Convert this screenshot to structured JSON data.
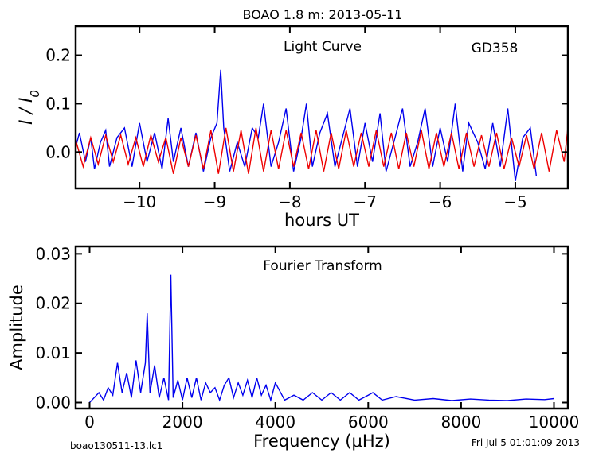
{
  "figure": {
    "title": "BOAO 1.8 m:  2013-05-11",
    "footer_left": "boao130511-13.lc1",
    "footer_right": "Fri Jul  5 01:01:09 2013"
  },
  "chart_data": [
    {
      "type": "line",
      "title": "Light Curve",
      "annotation": "GD358",
      "xlabel": "hours UT",
      "ylabel": "I / I0",
      "xlim": [
        -10.85,
        -4.3
      ],
      "ylim": [
        -0.075,
        0.26
      ],
      "xticks": [
        -10,
        -9,
        -8,
        -7,
        -6,
        -5
      ],
      "xtick_labels": [
        "−10",
        "−9",
        "−8",
        "−7",
        "−6",
        "−5"
      ],
      "yticks": [
        0.0,
        0.1,
        0.2
      ],
      "ytick_labels": [
        "0.0",
        "0.1",
        "0.2"
      ],
      "grid": false,
      "series": [
        {
          "color": "#0000ee",
          "x": [
            -10.85,
            -10.8,
            -10.72,
            -10.65,
            -10.6,
            -10.52,
            -10.45,
            -10.4,
            -10.3,
            -10.2,
            -10.1,
            -10.0,
            -9.9,
            -9.8,
            -9.7,
            -9.62,
            -9.55,
            -9.45,
            -9.35,
            -9.25,
            -9.15,
            -9.05,
            -8.97,
            -8.92,
            -8.88,
            -8.8,
            -8.7,
            -8.6,
            -8.5,
            -8.42,
            -8.35,
            -8.25,
            -8.15,
            -8.05,
            -7.95,
            -7.85,
            -7.78,
            -7.7,
            -7.6,
            -7.5,
            -7.4,
            -7.3,
            -7.2,
            -7.1,
            -7.0,
            -6.9,
            -6.8,
            -6.72,
            -6.6,
            -6.5,
            -6.4,
            -6.3,
            -6.2,
            -6.1,
            -6.0,
            -5.9,
            -5.8,
            -5.7,
            -5.62,
            -5.5,
            -5.4,
            -5.3,
            -5.2,
            -5.1,
            -5.0,
            -4.9,
            -4.8,
            -4.72
          ],
          "y": [
            0.01,
            0.04,
            -0.02,
            0.03,
            -0.035,
            0.02,
            0.045,
            -0.03,
            0.03,
            0.05,
            -0.03,
            0.06,
            -0.02,
            0.04,
            -0.035,
            0.07,
            -0.02,
            0.05,
            -0.03,
            0.04,
            -0.04,
            0.03,
            0.06,
            0.17,
            0.05,
            -0.04,
            0.02,
            -0.03,
            0.05,
            0.03,
            0.1,
            -0.03,
            0.02,
            0.09,
            -0.04,
            0.03,
            0.1,
            -0.03,
            0.04,
            0.08,
            -0.03,
            0.03,
            0.09,
            -0.03,
            0.06,
            -0.02,
            0.08,
            -0.04,
            0.03,
            0.09,
            -0.03,
            0.02,
            0.09,
            -0.03,
            0.05,
            -0.02,
            0.1,
            -0.04,
            0.06,
            0.02,
            -0.035,
            0.06,
            -0.03,
            0.09,
            -0.06,
            0.03,
            0.05,
            -0.05
          ]
        },
        {
          "color": "#ee0000",
          "x": [
            -10.85,
            -10.75,
            -10.65,
            -10.55,
            -10.45,
            -10.35,
            -10.25,
            -10.15,
            -10.05,
            -9.95,
            -9.85,
            -9.75,
            -9.65,
            -9.55,
            -9.45,
            -9.35,
            -9.25,
            -9.15,
            -9.05,
            -8.95,
            -8.85,
            -8.75,
            -8.65,
            -8.55,
            -8.45,
            -8.35,
            -8.25,
            -8.15,
            -8.05,
            -7.95,
            -7.85,
            -7.75,
            -7.65,
            -7.55,
            -7.45,
            -7.35,
            -7.25,
            -7.15,
            -7.05,
            -6.95,
            -6.85,
            -6.75,
            -6.65,
            -6.55,
            -6.45,
            -6.35,
            -6.25,
            -6.15,
            -6.05,
            -5.95,
            -5.85,
            -5.75,
            -5.65,
            -5.55,
            -5.45,
            -5.35,
            -5.25,
            -5.15,
            -5.05,
            -4.95,
            -4.85,
            -4.75,
            -4.65,
            -4.55,
            -4.45,
            -4.35,
            -4.3
          ],
          "y": [
            0.025,
            -0.03,
            0.03,
            -0.025,
            0.035,
            -0.02,
            0.035,
            -0.025,
            0.03,
            -0.03,
            0.035,
            -0.02,
            0.03,
            -0.045,
            0.03,
            -0.03,
            0.035,
            -0.035,
            0.045,
            -0.045,
            0.05,
            -0.04,
            0.045,
            -0.045,
            0.05,
            -0.04,
            0.045,
            -0.035,
            0.045,
            -0.03,
            0.04,
            -0.035,
            0.045,
            -0.04,
            0.04,
            -0.035,
            0.045,
            -0.03,
            0.04,
            -0.03,
            0.045,
            -0.03,
            0.04,
            -0.035,
            0.04,
            -0.03,
            0.045,
            -0.035,
            0.04,
            -0.03,
            0.04,
            -0.035,
            0.04,
            -0.03,
            0.035,
            -0.03,
            0.04,
            -0.035,
            0.03,
            -0.03,
            0.035,
            -0.035,
            0.04,
            -0.04,
            0.045,
            -0.02,
            0.05
          ]
        }
      ]
    },
    {
      "type": "line",
      "title": "Fourier Transform",
      "xlabel": "Frequency (μHz)",
      "ylabel": "Amplitude",
      "xlim": [
        -300,
        10300
      ],
      "ylim": [
        -0.0012,
        0.0315
      ],
      "xticks": [
        0,
        2000,
        4000,
        6000,
        8000,
        10000
      ],
      "xtick_labels": [
        "0",
        "2000",
        "4000",
        "6000",
        "8000",
        "10000"
      ],
      "yticks": [
        0.0,
        0.01,
        0.02,
        0.03
      ],
      "ytick_labels": [
        "0.00",
        "0.01",
        "0.02",
        "0.03"
      ],
      "grid": false,
      "series": [
        {
          "color": "#0000ee",
          "x": [
            0,
            100,
            200,
            300,
            400,
            500,
            600,
            700,
            800,
            900,
            1000,
            1100,
            1200,
            1240,
            1300,
            1400,
            1500,
            1600,
            1700,
            1750,
            1800,
            1900,
            2000,
            2100,
            2200,
            2300,
            2400,
            2500,
            2600,
            2700,
            2800,
            2900,
            3000,
            3100,
            3200,
            3300,
            3400,
            3500,
            3600,
            3700,
            3800,
            3900,
            4000,
            4200,
            4400,
            4600,
            4800,
            5000,
            5200,
            5400,
            5600,
            5800,
            6000,
            6100,
            6300,
            6600,
            7000,
            7400,
            7800,
            8200,
            8600,
            9000,
            9400,
            9800,
            10000
          ],
          "y": [
            0.0,
            0.001,
            0.002,
            0.0005,
            0.003,
            0.0015,
            0.008,
            0.002,
            0.006,
            0.001,
            0.0085,
            0.002,
            0.008,
            0.018,
            0.002,
            0.0075,
            0.001,
            0.005,
            0.0005,
            0.0258,
            0.001,
            0.0045,
            0.0005,
            0.005,
            0.001,
            0.005,
            0.0005,
            0.004,
            0.002,
            0.003,
            0.0005,
            0.0035,
            0.005,
            0.001,
            0.004,
            0.0015,
            0.0045,
            0.001,
            0.005,
            0.0015,
            0.0035,
            0.0005,
            0.004,
            0.0005,
            0.0015,
            0.0005,
            0.002,
            0.0005,
            0.002,
            0.0005,
            0.002,
            0.0005,
            0.0015,
            0.002,
            0.0005,
            0.0012,
            0.0005,
            0.0008,
            0.0004,
            0.0007,
            0.0005,
            0.0004,
            0.0007,
            0.0006,
            0.0008
          ]
        }
      ]
    }
  ]
}
